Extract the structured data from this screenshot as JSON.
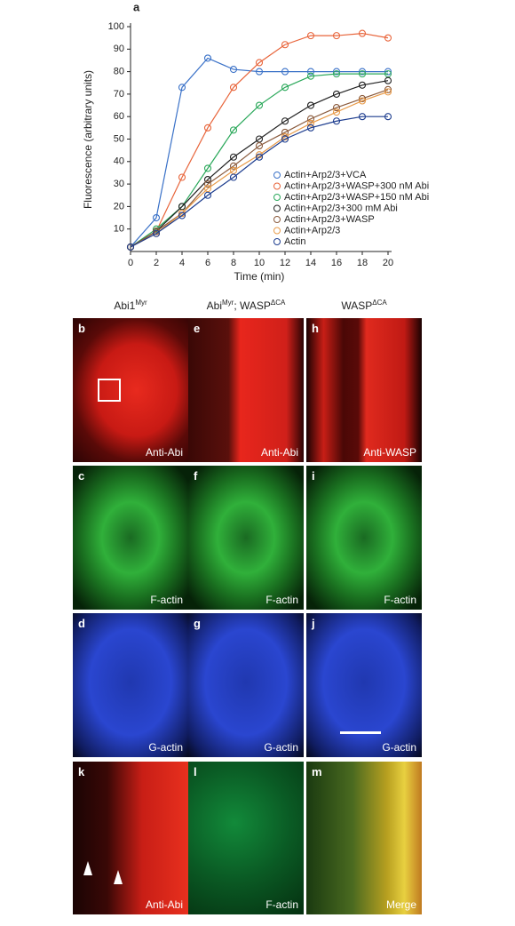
{
  "chart_data": {
    "type": "line",
    "panel_label": "a",
    "x_label": "Time (min)",
    "y_label": "Fluorescence (arbitrary units)",
    "x": [
      0,
      2,
      4,
      6,
      8,
      10,
      12,
      14,
      16,
      18,
      20
    ],
    "xlim": [
      0,
      20
    ],
    "xticks": [
      0,
      2,
      4,
      6,
      8,
      10,
      12,
      14,
      16,
      18,
      20
    ],
    "ylim": [
      0,
      100
    ],
    "yticks": [
      10,
      20,
      30,
      40,
      50,
      60,
      70,
      80,
      90,
      100
    ],
    "series": [
      {
        "name": "Actin+Arp2/3+VCA",
        "color": "#3b72c8",
        "values": [
          2,
          15,
          73,
          86,
          81,
          80,
          80,
          80,
          80,
          80,
          80
        ]
      },
      {
        "name": "Actin+Arp2/3+WASP+300 nM Abi",
        "color": "#e8643a",
        "values": [
          2,
          9,
          33,
          55,
          73,
          84,
          92,
          96,
          96,
          97,
          95
        ]
      },
      {
        "name": "Actin+Arp2/3+WASP+150 nM Abi",
        "color": "#2aa85a",
        "values": [
          2,
          10,
          20,
          37,
          54,
          65,
          73,
          78,
          79,
          79,
          79
        ]
      },
      {
        "name": "Actin+Arp2/3+300 mM Abi",
        "color": "#222222",
        "values": [
          2,
          9,
          20,
          32,
          42,
          50,
          58,
          65,
          70,
          74,
          76
        ]
      },
      {
        "name": "Actin+Arp2/3+WASP",
        "color": "#8a5a3c",
        "values": [
          2,
          9,
          17,
          30,
          38,
          47,
          53,
          59,
          64,
          68,
          72
        ]
      },
      {
        "name": "Actin+Arp2/3",
        "color": "#e89a48",
        "values": [
          2,
          8,
          17,
          28,
          36,
          43,
          51,
          57,
          62,
          67,
          71
        ]
      },
      {
        "name": "Actin",
        "color": "#1c3c8e",
        "values": [
          2,
          8,
          16,
          25,
          33,
          42,
          50,
          55,
          58,
          60,
          60
        ]
      }
    ]
  },
  "headers": [
    [
      {
        "text": "Abi1"
      },
      {
        "sup": "Myr"
      }
    ],
    [
      {
        "text": "Abi"
      },
      {
        "sup": "Myr"
      },
      {
        "text": "; WASP"
      },
      {
        "sup": "ΔCA"
      }
    ],
    [
      {
        "text": "WASP"
      },
      {
        "sup": "ΔCA"
      }
    ]
  ],
  "panels": [
    {
      "label": "b",
      "caption": "Anti-Abi"
    },
    {
      "label": "e",
      "caption": "Anti-Abi"
    },
    {
      "label": "h",
      "caption": "Anti-WASP"
    },
    {
      "label": "c",
      "caption": "F-actin"
    },
    {
      "label": "f",
      "caption": "F-actin"
    },
    {
      "label": "i",
      "caption": "F-actin"
    },
    {
      "label": "d",
      "caption": "G-actin"
    },
    {
      "label": "g",
      "caption": "G-actin"
    },
    {
      "label": "j",
      "caption": "G-actin"
    },
    {
      "label": "k",
      "caption": "Anti-Abi"
    },
    {
      "label": "l",
      "caption": "F-actin"
    },
    {
      "label": "m",
      "caption": "Merge"
    }
  ]
}
